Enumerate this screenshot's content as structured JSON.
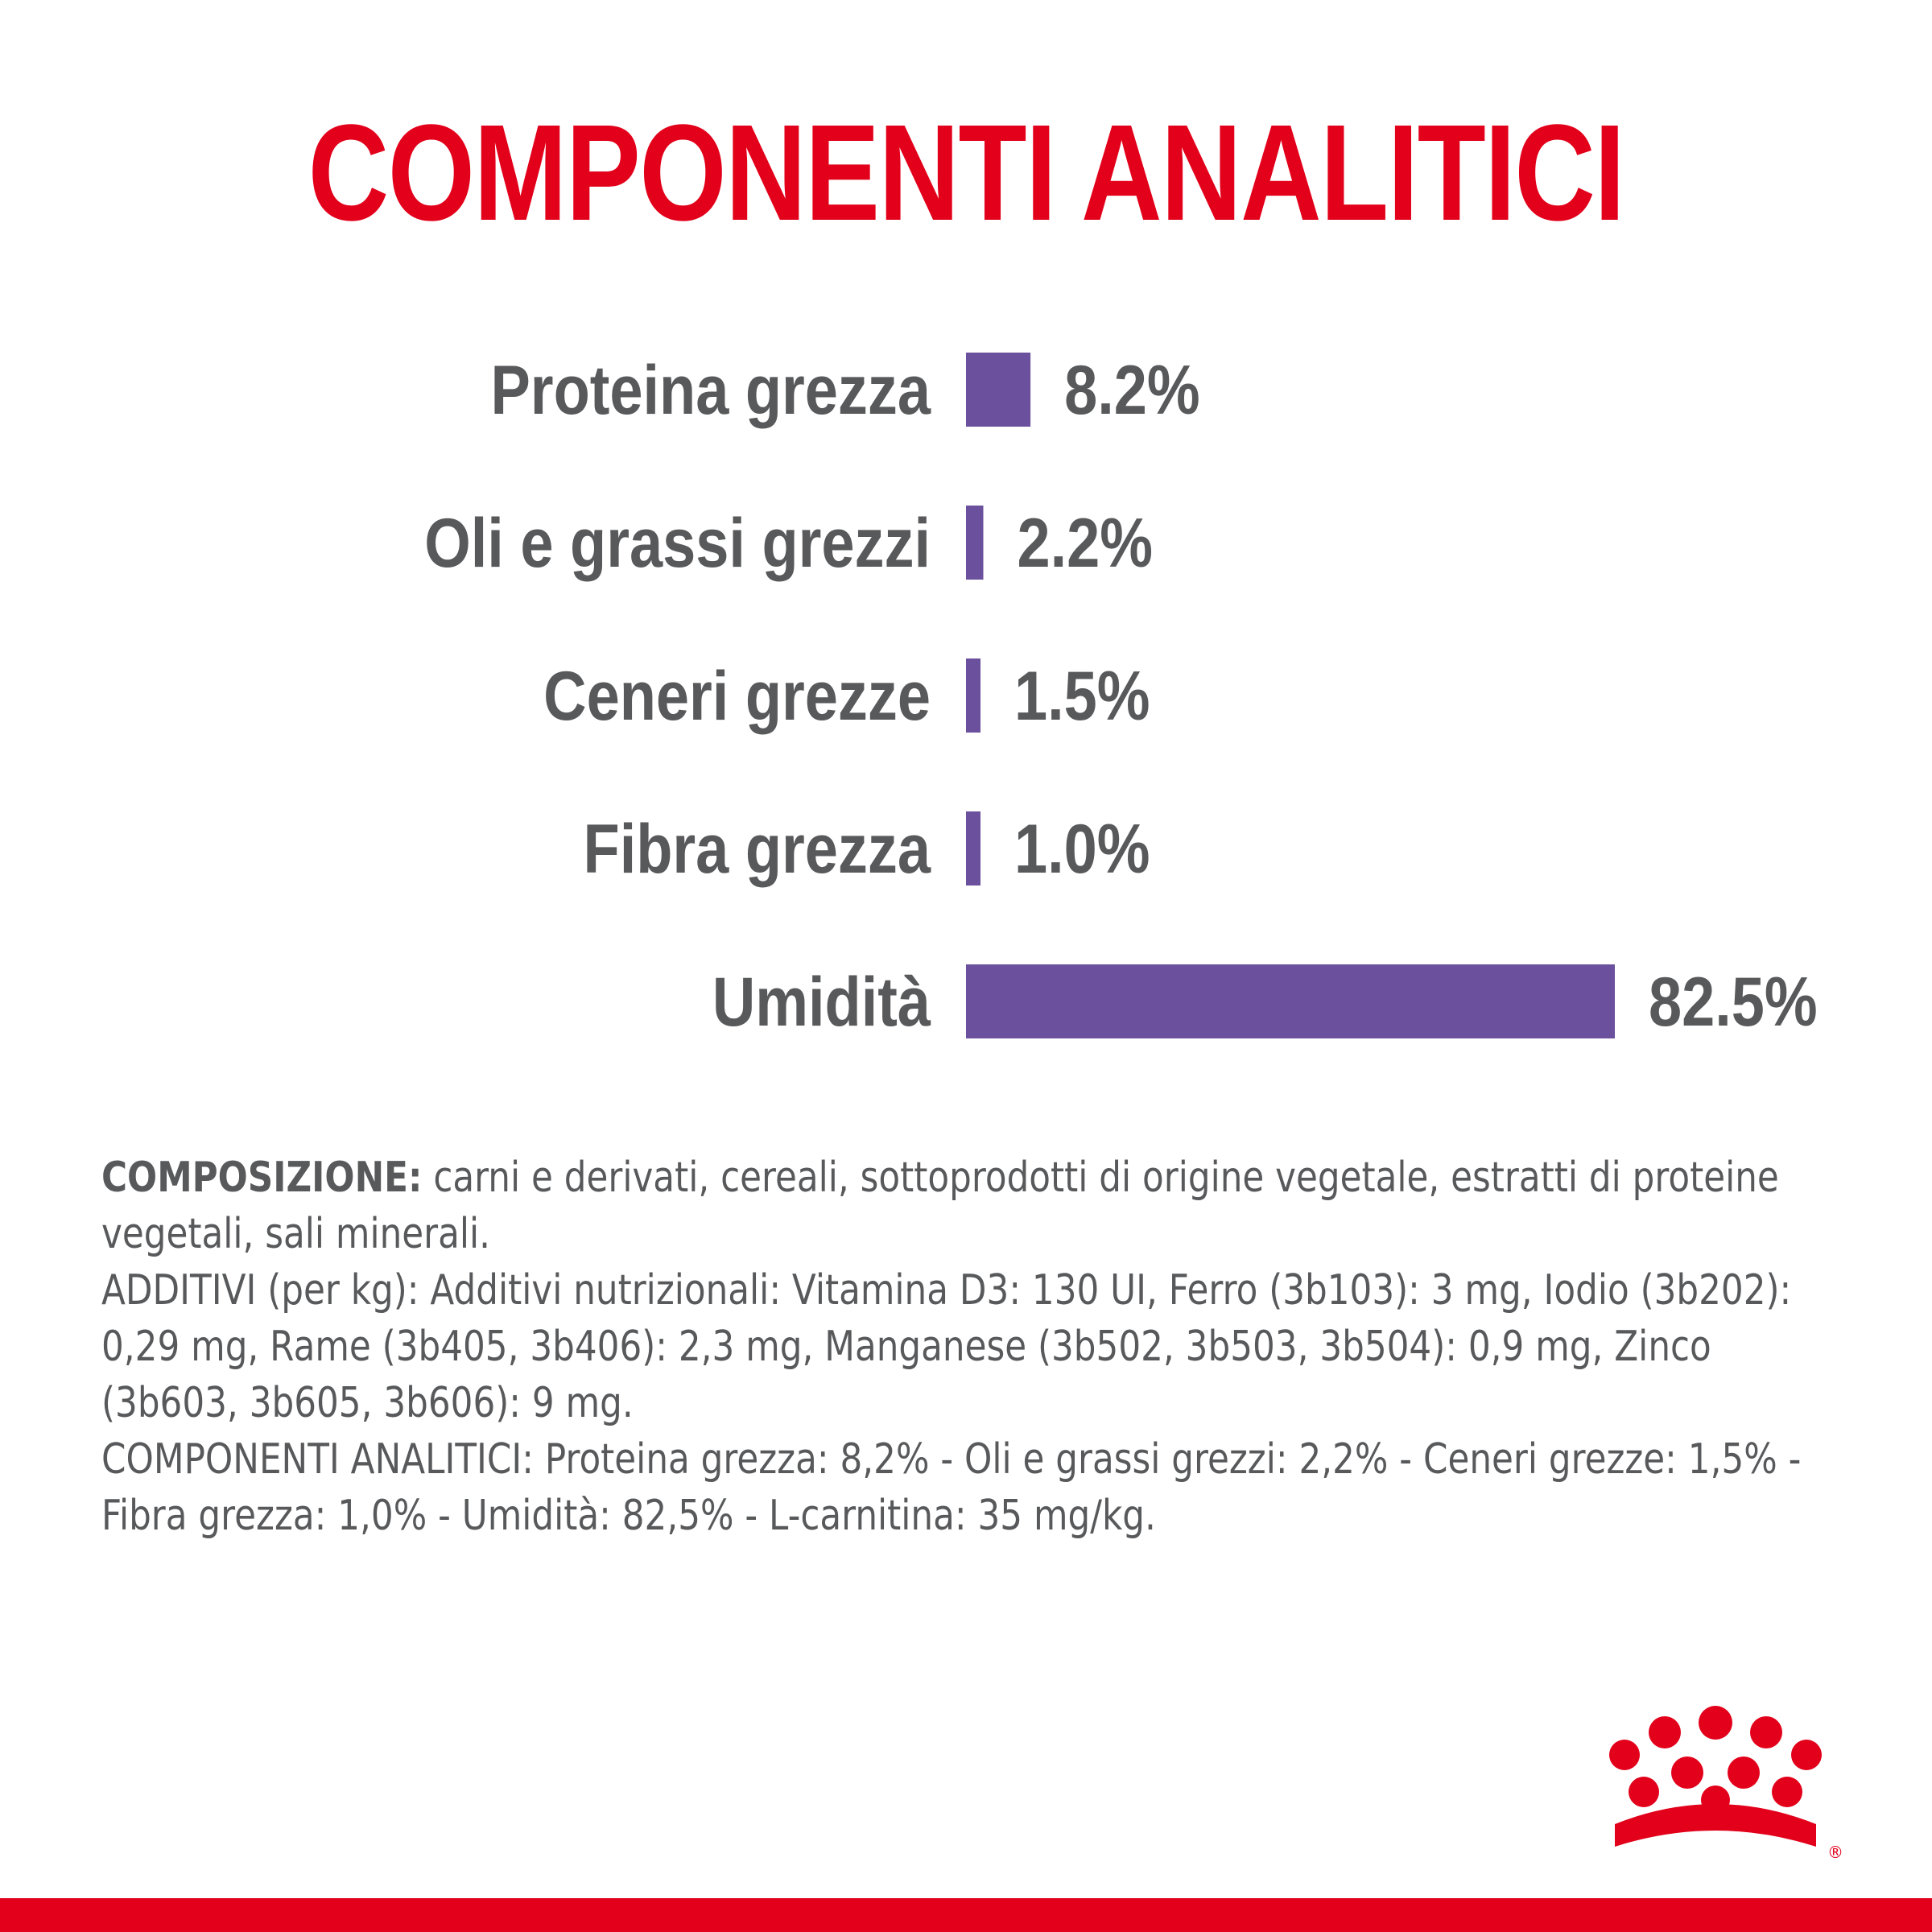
{
  "title": "COMPONENTI ANALITICI",
  "colors": {
    "title": "#e2001a",
    "bar": "#6a509d",
    "text": "#58595b",
    "brand": "#e2001a"
  },
  "chart_data": {
    "type": "bar",
    "orientation": "horizontal",
    "categories": [
      "Proteina grezza",
      "Oli e grassi grezzi",
      "Ceneri grezze",
      "Fibra grezza",
      "Umidità"
    ],
    "values": [
      8.2,
      2.2,
      1.5,
      1.0,
      82.5
    ],
    "value_labels": [
      "8.2%",
      "2.2%",
      "1.5%",
      "1.0%",
      "82.5%"
    ],
    "unit": "%",
    "grid": false,
    "legend": "none"
  },
  "composition": {
    "label": "COMPOSIZIONE:",
    "text": " carni e derivati, cereali, sottoprodotti di origine vegetale, estratti di proteine vegetali, sali minerali.",
    "additives": "ADDITIVI (per kg): Additivi nutrizionali: Vitamina D3: 130 UI, Ferro (3b103): 3 mg, Iodio (3b202): 0,29 mg, Rame (3b405, 3b406): 2,3 mg, Manganese (3b502, 3b503, 3b504): 0,9 mg, Zinco (3b603, 3b605, 3b606): 9 mg.",
    "analytics": "COMPONENTI ANALITICI: Proteina grezza: 8,2% - Oli e grassi grezzi: 2,2% - Ceneri grezze: 1,5% - Fibra grezza: 1,0% - Umidità: 82,5% - L-carnitina: 35 mg/kg."
  },
  "logo": {
    "icon": "crown-logo-icon",
    "registered_mark": "®"
  }
}
